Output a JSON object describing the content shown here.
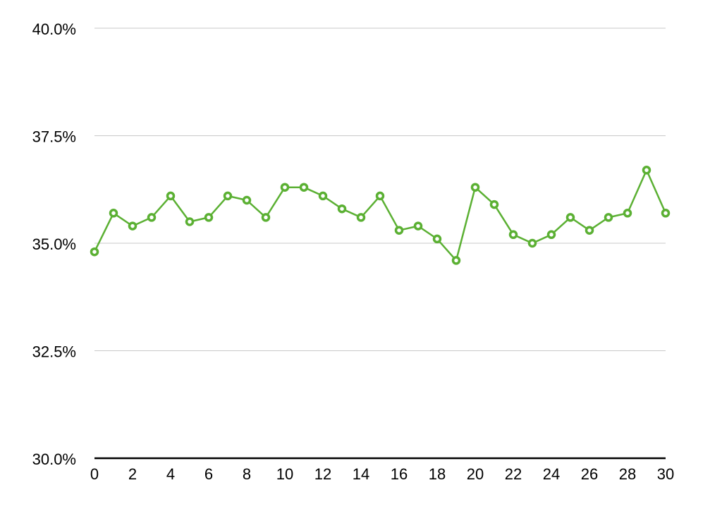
{
  "chart_data": {
    "type": "line",
    "title": "",
    "xlabel": "",
    "ylabel": "",
    "x": [
      0,
      1,
      2,
      3,
      4,
      5,
      6,
      7,
      8,
      9,
      10,
      11,
      12,
      13,
      14,
      15,
      16,
      17,
      18,
      19,
      20,
      21,
      22,
      23,
      24,
      25,
      26,
      27,
      28,
      29,
      30
    ],
    "series": [
      {
        "values": [
          34.8,
          35.7,
          35.4,
          35.6,
          36.1,
          35.5,
          35.6,
          36.1,
          36.0,
          35.6,
          36.3,
          36.3,
          36.1,
          35.8,
          35.6,
          36.1,
          35.3,
          35.4,
          35.1,
          34.6,
          36.3,
          35.9,
          35.2,
          35.0,
          35.2,
          35.6,
          35.3,
          35.6,
          35.7,
          36.7,
          35.7
        ],
        "color": "#5bb033"
      }
    ],
    "xlim": [
      0,
      30
    ],
    "ylim": [
      30.0,
      40.0
    ],
    "x_ticks": [
      "0",
      "2",
      "4",
      "6",
      "8",
      "10",
      "12",
      "14",
      "16",
      "18",
      "20",
      "22",
      "24",
      "26",
      "28",
      "30"
    ],
    "y_ticks": [
      "30.0%",
      "32.5%",
      "35.0%",
      "37.5%",
      "40.0%"
    ],
    "y_tick_values": [
      30.0,
      32.5,
      35.0,
      37.5,
      40.0
    ],
    "grid": "horizontal",
    "colors": {
      "line": "#5bb033",
      "grid": "#c8c8c8",
      "axis": "#000000"
    }
  }
}
